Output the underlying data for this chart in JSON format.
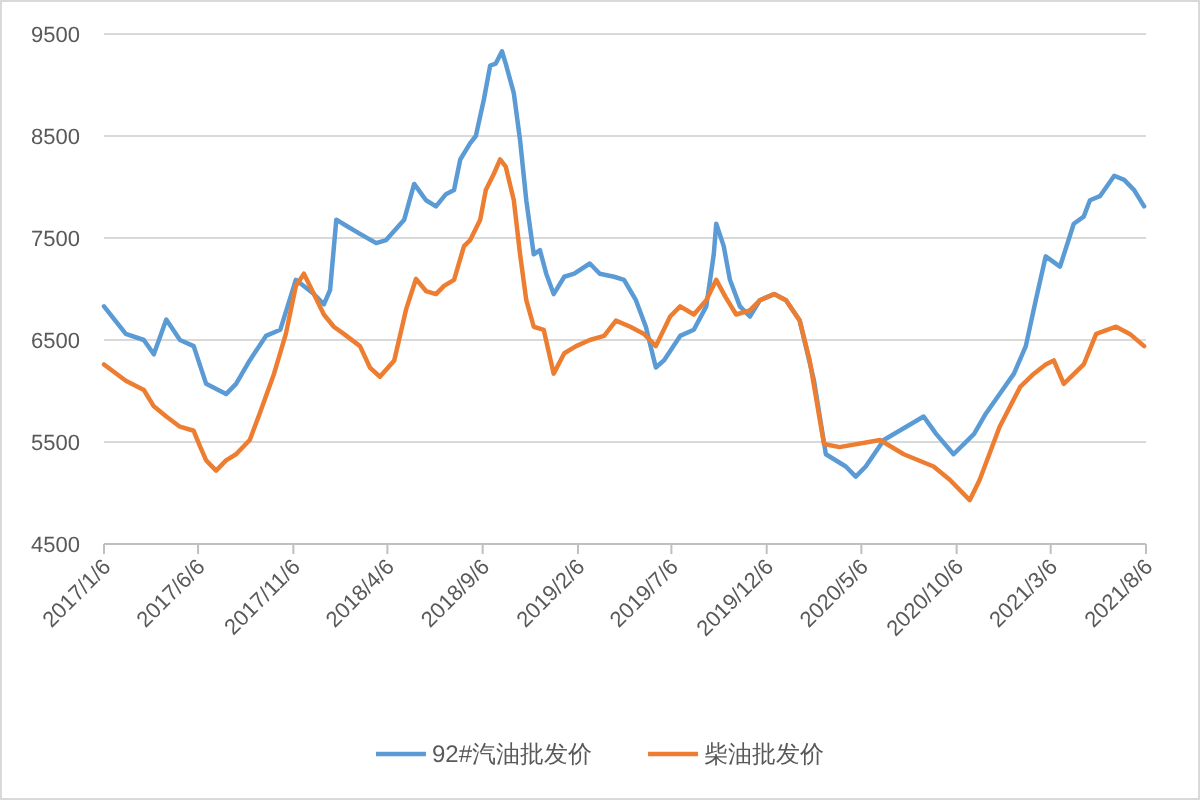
{
  "chart_data": {
    "type": "line",
    "xlim": [
      "2017-01-06",
      "2021-08-06"
    ],
    "xticks": [
      {
        "value": "2017-01-06",
        "label": "2017/1/6"
      },
      {
        "value": "2017-06-06",
        "label": "2017/6/6"
      },
      {
        "value": "2017-11-06",
        "label": "2017/11/6"
      },
      {
        "value": "2018-04-06",
        "label": "2018/4/6"
      },
      {
        "value": "2018-09-06",
        "label": "2018/9/6"
      },
      {
        "value": "2019-02-06",
        "label": "2019/2/6"
      },
      {
        "value": "2019-07-06",
        "label": "2019/7/6"
      },
      {
        "value": "2019-12-06",
        "label": "2019/12/6"
      },
      {
        "value": "2020-05-06",
        "label": "2020/5/6"
      },
      {
        "value": "2020-10-06",
        "label": "2020/10/6"
      },
      {
        "value": "2021-03-06",
        "label": "2021/3/6"
      },
      {
        "value": "2021-08-06",
        "label": "2021/8/6"
      }
    ],
    "ylim": [
      4500,
      9500
    ],
    "yticks": [
      4500,
      5500,
      6500,
      7500,
      8500,
      9500
    ],
    "grid": "y",
    "legend": "bottom",
    "series": [
      {
        "name": "92#汽油批发价",
        "color": "#5b9bd5",
        "x": [
          "2017-01-06",
          "2017-02-10",
          "2017-03-11",
          "2017-03-27",
          "2017-04-16",
          "2017-05-08",
          "2017-05-30",
          "2017-06-19",
          "2017-07-21",
          "2017-08-06",
          "2017-08-28",
          "2017-09-23",
          "2017-10-16",
          "2017-11-10",
          "2017-12-09",
          "2017-12-25",
          "2018-01-04",
          "2018-01-14",
          "2018-01-30",
          "2018-02-21",
          "2018-03-19",
          "2018-04-04",
          "2018-05-03",
          "2018-05-19",
          "2018-06-07",
          "2018-06-23",
          "2018-07-09",
          "2018-07-22",
          "2018-08-01",
          "2018-08-17",
          "2018-08-26",
          "2018-09-08",
          "2018-09-18",
          "2018-09-27",
          "2018-10-07",
          "2018-10-13",
          "2018-10-26",
          "2018-11-05",
          "2018-11-15",
          "2018-11-27",
          "2018-12-07",
          "2018-12-17",
          "2018-12-29",
          "2019-01-15",
          "2019-01-31",
          "2019-02-25",
          "2019-03-13",
          "2019-04-05",
          "2019-04-21",
          "2019-05-10",
          "2019-05-26",
          "2019-06-11",
          "2019-06-24",
          "2019-07-20",
          "2019-08-11",
          "2019-08-31",
          "2019-09-12",
          "2019-09-16",
          "2019-09-28",
          "2019-10-08",
          "2019-10-24",
          "2019-11-09",
          "2019-11-25",
          "2019-12-18",
          "2020-01-06",
          "2020-01-28",
          "2020-02-20",
          "2020-03-10",
          "2020-04-11",
          "2020-04-27",
          "2020-05-13",
          "2020-06-11",
          "2020-08-14",
          "2020-09-03",
          "2020-10-01",
          "2020-11-03",
          "2020-11-22",
          "2020-12-14",
          "2021-01-06",
          "2021-01-25",
          "2021-02-10",
          "2021-02-26",
          "2021-03-21",
          "2021-04-12",
          "2021-04-28",
          "2021-05-08",
          "2021-05-24",
          "2021-06-16",
          "2021-07-02",
          "2021-07-18",
          "2021-08-03"
        ],
        "values": [
          6830,
          6560,
          6500,
          6360,
          6700,
          6500,
          6440,
          6070,
          5970,
          6070,
          6300,
          6540,
          6600,
          7090,
          6950,
          6850,
          6990,
          7680,
          7620,
          7540,
          7450,
          7480,
          7680,
          8030,
          7870,
          7810,
          7930,
          7970,
          8270,
          8430,
          8500,
          8860,
          9190,
          9210,
          9330,
          9210,
          8920,
          8460,
          7870,
          7340,
          7380,
          7150,
          6950,
          7120,
          7150,
          7250,
          7150,
          7120,
          7090,
          6890,
          6630,
          6230,
          6300,
          6540,
          6600,
          6830,
          7340,
          7640,
          7420,
          7090,
          6830,
          6730,
          6890,
          6950,
          6890,
          6690,
          6100,
          5380,
          5260,
          5160,
          5260,
          5520,
          5750,
          5580,
          5380,
          5580,
          5780,
          5970,
          6170,
          6440,
          6890,
          7320,
          7220,
          7640,
          7710,
          7870,
          7910,
          8110,
          8070,
          7970,
          7810
        ]
      },
      {
        "name": "柴油批发价",
        "color": "#ed7d31",
        "x": [
          "2017-01-06",
          "2017-02-10",
          "2017-03-11",
          "2017-03-27",
          "2017-04-16",
          "2017-05-08",
          "2017-05-30",
          "2017-06-09",
          "2017-06-19",
          "2017-07-05",
          "2017-07-21",
          "2017-08-06",
          "2017-08-28",
          "2017-09-13",
          "2017-10-06",
          "2017-10-25",
          "2017-11-10",
          "2017-11-23",
          "2017-12-09",
          "2017-12-25",
          "2018-01-10",
          "2018-01-26",
          "2018-02-21",
          "2018-03-09",
          "2018-03-25",
          "2018-04-17",
          "2018-05-06",
          "2018-05-22",
          "2018-06-07",
          "2018-06-23",
          "2018-07-06",
          "2018-07-22",
          "2018-08-07",
          "2018-08-17",
          "2018-09-02",
          "2018-09-11",
          "2018-09-24",
          "2018-10-04",
          "2018-10-13",
          "2018-10-26",
          "2018-11-05",
          "2018-11-15",
          "2018-11-27",
          "2018-12-13",
          "2018-12-29",
          "2019-01-15",
          "2019-02-03",
          "2019-02-25",
          "2019-03-20",
          "2019-04-08",
          "2019-05-01",
          "2019-05-23",
          "2019-06-11",
          "2019-07-04",
          "2019-07-20",
          "2019-08-11",
          "2019-08-31",
          "2019-09-16",
          "2019-10-01",
          "2019-10-18",
          "2019-11-09",
          "2019-11-25",
          "2019-12-18",
          "2020-01-06",
          "2020-01-28",
          "2020-02-13",
          "2020-03-07",
          "2020-04-01",
          "2020-06-05",
          "2020-07-13",
          "2020-08-30",
          "2020-09-25",
          "2020-10-27",
          "2020-11-12",
          "2020-12-14",
          "2021-01-16",
          "2021-02-07",
          "2021-02-26",
          "2021-03-11",
          "2021-03-27",
          "2021-04-28",
          "2021-05-18",
          "2021-06-19",
          "2021-07-11",
          "2021-08-03"
        ],
        "values": [
          6260,
          6100,
          6010,
          5850,
          5750,
          5650,
          5610,
          5460,
          5320,
          5220,
          5320,
          5380,
          5520,
          5780,
          6170,
          6560,
          7030,
          7150,
          6950,
          6750,
          6630,
          6560,
          6440,
          6230,
          6140,
          6300,
          6800,
          7100,
          6980,
          6950,
          7030,
          7090,
          7420,
          7480,
          7680,
          7970,
          8130,
          8270,
          8200,
          7870,
          7340,
          6890,
          6630,
          6600,
          6170,
          6370,
          6440,
          6500,
          6540,
          6690,
          6630,
          6560,
          6440,
          6730,
          6830,
          6750,
          6890,
          7090,
          6920,
          6750,
          6790,
          6890,
          6950,
          6890,
          6690,
          6300,
          5480,
          5450,
          5520,
          5380,
          5260,
          5130,
          4930,
          5130,
          5650,
          6040,
          6170,
          6260,
          6300,
          6070,
          6260,
          6560,
          6630,
          6560,
          6440
        ]
      }
    ]
  }
}
